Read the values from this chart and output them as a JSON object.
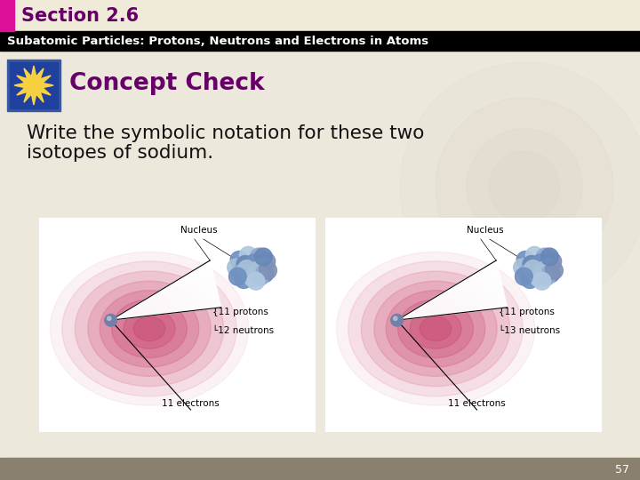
{
  "title_section": "Section 2.6",
  "subtitle": "Subatomic Particles: Protons, Neutrons and Electrons in Atoms",
  "concept_check": "Concept Check",
  "body_text_line1": "Write the symbolic notation for these two",
  "body_text_line2": "isotopes of sodium.",
  "atom1_protons": "11 protons",
  "atom1_neutrons": "12 neutrons",
  "atom1_electrons": "11 electrons",
  "atom2_protons": "11 protons",
  "atom2_neutrons": "13 neutrons",
  "atom2_electrons": "11 electrons",
  "page_number": "57",
  "bg_color": "#ede8dc",
  "header_bg_color": "#f0ead8",
  "header_bar_color": "#000000",
  "section_title_color": "#660066",
  "subtitle_color": "#ffffff",
  "concept_check_color": "#660066",
  "body_text_color": "#111111",
  "pink_bar_color": "#dd1199",
  "footer_bg": "#8a8070",
  "nucleus_color_1": "#7090c0",
  "nucleus_color_2": "#b0c8e0",
  "electron_color": "#7080a8"
}
